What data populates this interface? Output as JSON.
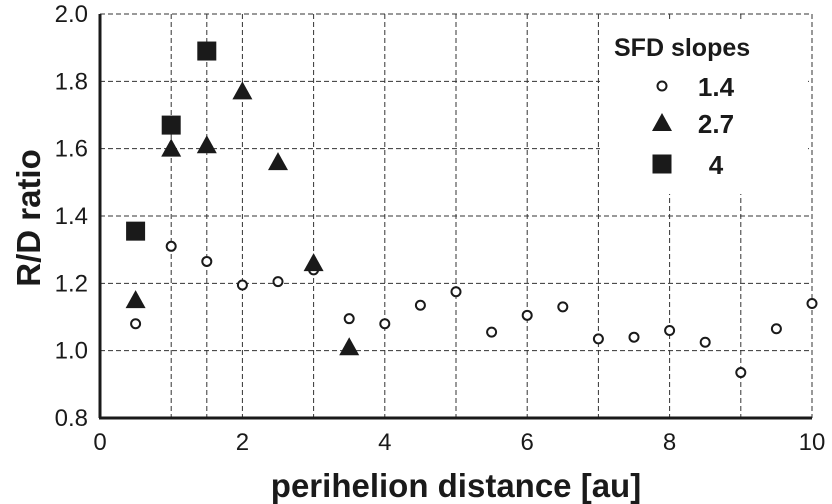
{
  "chart_data": {
    "type": "scatter",
    "title": "",
    "xlabel": "perihelion distance [au]",
    "ylabel": "R/D ratio",
    "xlim": [
      0,
      10
    ],
    "ylim": [
      0.8,
      2.0
    ],
    "xticks": [
      0,
      2,
      4,
      6,
      8,
      10
    ],
    "yticks": [
      0.8,
      1.0,
      1.2,
      1.4,
      1.6,
      1.8,
      2.0
    ],
    "x_gridlines": [
      1,
      1.5,
      2,
      3,
      4,
      5,
      6,
      7,
      8,
      9,
      10
    ],
    "y_gridlines": [
      0.8,
      1.0,
      1.2,
      1.4,
      1.6,
      1.8,
      2.0
    ],
    "grid": true,
    "legend": {
      "title": "SFD slopes",
      "position": "top-right"
    },
    "series": [
      {
        "name": "1.4",
        "marker": "open-circle",
        "color": "#1a1a1a",
        "points": [
          [
            0.5,
            1.08
          ],
          [
            1.0,
            1.31
          ],
          [
            1.5,
            1.265
          ],
          [
            2.0,
            1.195
          ],
          [
            2.5,
            1.205
          ],
          [
            3.0,
            1.24
          ],
          [
            3.5,
            1.095
          ],
          [
            4.0,
            1.08
          ],
          [
            4.5,
            1.135
          ],
          [
            5.0,
            1.175
          ],
          [
            5.5,
            1.055
          ],
          [
            6.0,
            1.105
          ],
          [
            6.5,
            1.13
          ],
          [
            7.0,
            1.035
          ],
          [
            7.5,
            1.04
          ],
          [
            8.0,
            1.06
          ],
          [
            8.5,
            1.025
          ],
          [
            9.0,
            0.935
          ],
          [
            9.5,
            1.065
          ],
          [
            10.0,
            1.14
          ]
        ]
      },
      {
        "name": "2.7",
        "marker": "filled-triangle",
        "color": "#1a1a1a",
        "points": [
          [
            0.5,
            1.15
          ],
          [
            1.0,
            1.6
          ],
          [
            1.5,
            1.61
          ],
          [
            2.0,
            1.77
          ],
          [
            2.5,
            1.56
          ],
          [
            3.0,
            1.26
          ],
          [
            3.5,
            1.01
          ]
        ]
      },
      {
        "name": "4",
        "marker": "filled-square",
        "color": "#1a1a1a",
        "points": [
          [
            0.5,
            1.355
          ],
          [
            1.0,
            1.67
          ],
          [
            1.5,
            1.89
          ]
        ]
      }
    ]
  }
}
